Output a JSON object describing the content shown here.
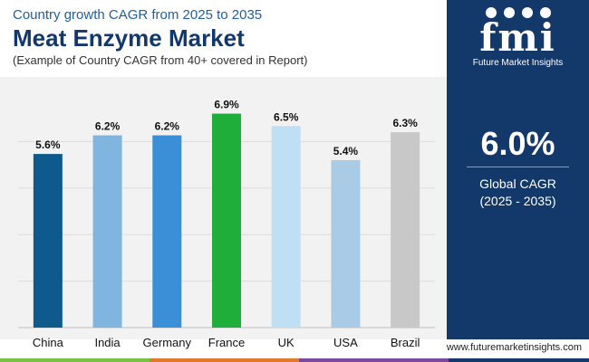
{
  "header": {
    "subtitle": "Country growth CAGR from 2025 to 2035",
    "title": "Meat Enzyme Market",
    "note": "(Example of Country CAGR from 40+ covered in Report)"
  },
  "chart_data": {
    "type": "bar",
    "categories": [
      "China",
      "India",
      "Germany",
      "France",
      "UK",
      "USA",
      "Brazil"
    ],
    "values": [
      5.6,
      6.2,
      6.2,
      6.9,
      6.5,
      5.4,
      6.3
    ],
    "value_labels": [
      "5.6%",
      "6.2%",
      "6.2%",
      "6.9%",
      "6.5%",
      "5.4%",
      "6.3%"
    ],
    "colors": [
      "#0f5a8c",
      "#7fb5df",
      "#3a8fd6",
      "#1fae3a",
      "#bfe0f3",
      "#a9cbe6",
      "#c8c8c8"
    ],
    "ylim": [
      0,
      7.5
    ],
    "grid": true,
    "xlabel": "",
    "ylabel": ""
  },
  "side_panel": {
    "logo_mark": "fmi",
    "logo_text": "Future Market Insights",
    "kpi_value": "6.0%",
    "kpi_label_line1": "Global CAGR",
    "kpi_label_line2": "(2025 - 2035)"
  },
  "footer": {
    "url": "www.futuremarketinsights.com",
    "bar_colors": [
      "#7ac143",
      "#e07b2e",
      "#7b4aa0",
      "#13386a"
    ]
  },
  "colors": {
    "panel": "#13386a",
    "title": "#12386b",
    "chart_bg": "#f2f2f2"
  }
}
